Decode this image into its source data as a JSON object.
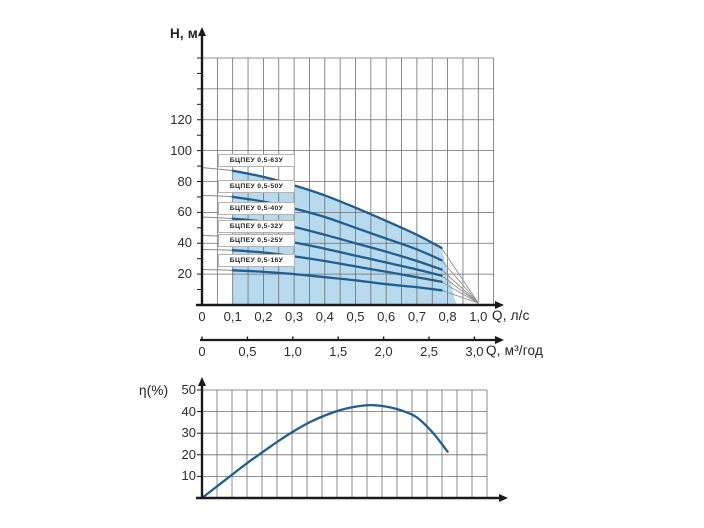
{
  "figure": {
    "background": "#ffffff",
    "description_note": "pump head-flow curves with efficiency curve below"
  },
  "chart_data": [
    {
      "type": "line",
      "title": "",
      "xlabel": "Q, л/с",
      "xlabel_secondary": "Q, м³/год",
      "ylabel": "Н, м",
      "x_tick_labels": [
        "0",
        "0,1",
        "0,2",
        "0,3",
        "0,4",
        "0,5",
        "0,6",
        "0,7",
        "0,8",
        "1,0"
      ],
      "x_tick_labels_secondary": [
        "0",
        "0,5",
        "1,0",
        "1,5",
        "2,0",
        "2,5",
        "3,0"
      ],
      "y_tick_labels": [
        "20",
        "40",
        "60",
        "80",
        "100",
        "120"
      ],
      "ylim": [
        0,
        160
      ],
      "grid": true,
      "legend_position": "on-curve-chips",
      "line_color": "#1f5e92",
      "fill_color": "#b7daef",
      "grid_color": "#6e6e6e",
      "axis_color": "#1a1a1a",
      "label_color": "#2d2d2d",
      "operating_range_fill": {
        "q_start": 0.1,
        "q_end": 0.9
      },
      "convergence_point": {
        "x_label": "1,0",
        "h": 2
      },
      "x": [
        0,
        0.1,
        0.2,
        0.3,
        0.4,
        0.5,
        0.6,
        0.7,
        0.78
      ],
      "series": [
        {
          "name": "БЦПЕУ 0,5-63У",
          "y": [
            89,
            87,
            83,
            77.5,
            71,
            63,
            54.5,
            45.5,
            37
          ]
        },
        {
          "name": "БЦПЕУ 0,5-50У",
          "y": [
            71,
            70,
            67,
            62.5,
            57,
            50,
            43,
            36,
            29
          ]
        },
        {
          "name": "БЦПЕУ 0,5-40У",
          "y": [
            57,
            56,
            54,
            50.5,
            45.5,
            40,
            34.5,
            28.5,
            23
          ]
        },
        {
          "name": "БЦПЕУ 0,5-32У",
          "y": [
            45,
            44.5,
            43,
            40.5,
            36.5,
            32,
            27.5,
            23,
            19
          ]
        },
        {
          "name": "БЦПЕУ 0,5-25У",
          "y": [
            36,
            35.5,
            34,
            31.5,
            28.5,
            25,
            21.5,
            18,
            15
          ]
        },
        {
          "name": "БЦПЕУ 0,5-16У",
          "y": [
            23,
            22.5,
            21.5,
            20,
            18,
            16,
            13.5,
            11.5,
            9.5
          ]
        }
      ]
    },
    {
      "type": "line",
      "title": "",
      "xlabel": "",
      "ylabel": "η(%)",
      "y_tick_labels": [
        "10",
        "20",
        "30",
        "40",
        "50"
      ],
      "ylim": [
        0,
        50
      ],
      "grid": true,
      "line_color": "#1f5e92",
      "grid_color": "#6e6e6e",
      "axis_color": "#1a1a1a",
      "label_color": "#2d2d2d",
      "series": [
        {
          "name": "η",
          "x": [
            0,
            0.05,
            0.1,
            0.15,
            0.2,
            0.25,
            0.3,
            0.35,
            0.4,
            0.45,
            0.5,
            0.55,
            0.6,
            0.65,
            0.7,
            0.75,
            0.8
          ],
          "y": [
            0,
            5.5,
            11,
            16.5,
            21.5,
            26.5,
            31,
            35,
            38.2,
            40.7,
            42.3,
            43,
            42.3,
            40.5,
            37.3,
            30.5,
            21.5
          ]
        }
      ]
    }
  ]
}
